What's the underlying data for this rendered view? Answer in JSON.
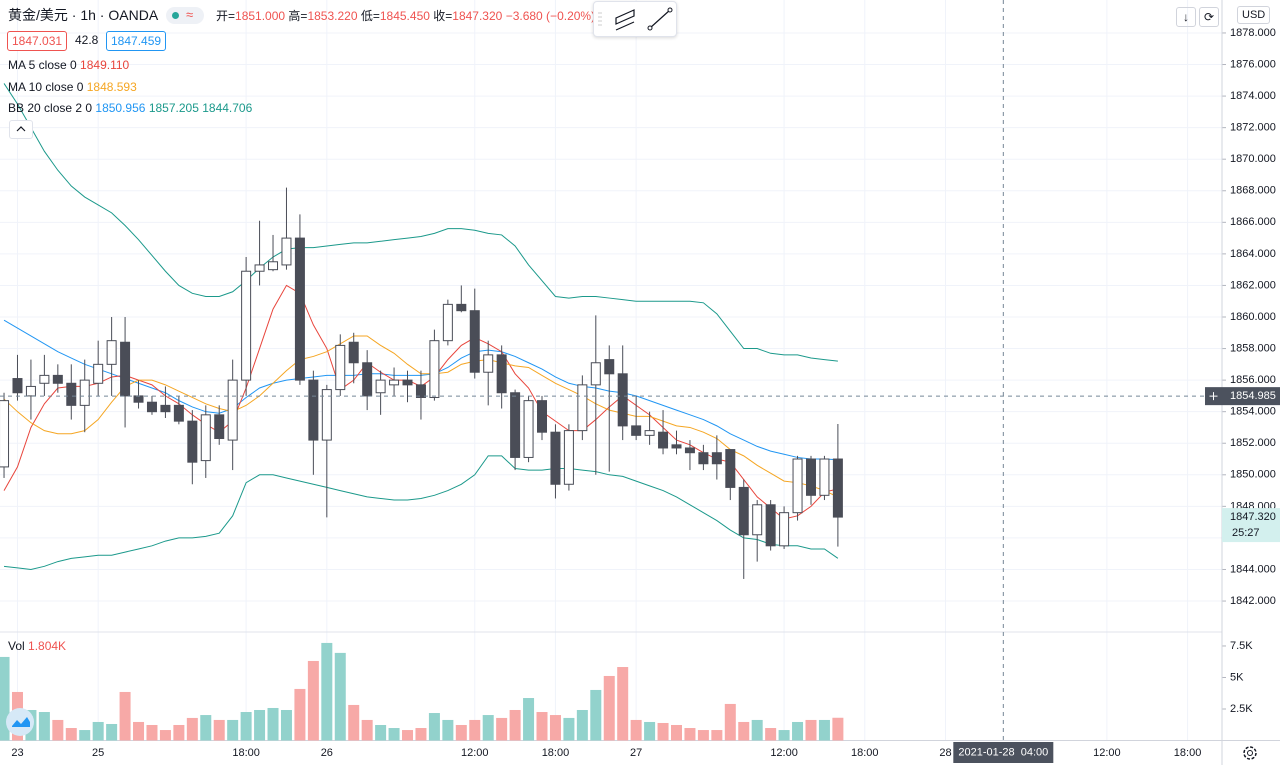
{
  "header": {
    "symbol": "黄金/美元",
    "interval": "1h",
    "exchange": "OANDA",
    "ohlc": [
      {
        "label": "开=",
        "value": "1851.000"
      },
      {
        "label": "高=",
        "value": "1853.220"
      },
      {
        "label": "低=",
        "value": "1845.450"
      },
      {
        "label": "收=",
        "value": "1847.320"
      }
    ],
    "change": "−3.680 (−0.20%)",
    "bid": "1847.031",
    "spread": "42.8",
    "ask": "1847.459",
    "currency": "USD"
  },
  "chart_data": {
    "type": "candlestick",
    "x": [
      0,
      1,
      2,
      3,
      4,
      5,
      6,
      7,
      8,
      9,
      10,
      11,
      12,
      13,
      14,
      15,
      16,
      17,
      18,
      19,
      20,
      21,
      22,
      23,
      24,
      25,
      26,
      27,
      28,
      29,
      30,
      31,
      32,
      33,
      34,
      35,
      36,
      37,
      38,
      39,
      40,
      41,
      42,
      43,
      44,
      45,
      46,
      47,
      48,
      49,
      50,
      51,
      52,
      53,
      54,
      55,
      56,
      57,
      58,
      59,
      60,
      61,
      62
    ],
    "xlim": [
      -0.3,
      90.56
    ],
    "xticks": [
      {
        "value": 1,
        "label": "23"
      },
      {
        "value": 7,
        "label": "25"
      },
      {
        "value": 18,
        "label": "18:00"
      },
      {
        "value": 24,
        "label": "26"
      },
      {
        "value": 35,
        "label": "12:00"
      },
      {
        "value": 41,
        "label": "18:00"
      },
      {
        "value": 47,
        "label": "27"
      },
      {
        "value": 58,
        "label": "12:00"
      },
      {
        "value": 64,
        "label": "18:00"
      },
      {
        "value": 70,
        "label": "28"
      },
      {
        "value": 82,
        "label": "12:00"
      },
      {
        "value": 88,
        "label": "18:00"
      }
    ],
    "ylim": [
      1840,
      1880
    ],
    "yticks": [
      {
        "value": 1842,
        "label": "1842.000"
      },
      {
        "value": 1844,
        "label": "1844.000"
      },
      {
        "value": 1846,
        "label": "1846.000"
      },
      {
        "value": 1848,
        "label": "1848.000"
      },
      {
        "value": 1850,
        "label": "1850.000"
      },
      {
        "value": 1852,
        "label": "1852.000"
      },
      {
        "value": 1854,
        "label": "1854.000"
      },
      {
        "value": 1856,
        "label": "1856.000"
      },
      {
        "value": 1858,
        "label": "1858.000"
      },
      {
        "value": 1860,
        "label": "1860.000"
      },
      {
        "value": 1862,
        "label": "1862.000"
      },
      {
        "value": 1864,
        "label": "1864.000"
      },
      {
        "value": 1866,
        "label": "1866.000"
      },
      {
        "value": 1868,
        "label": "1868.000"
      },
      {
        "value": 1870,
        "label": "1870.000"
      },
      {
        "value": 1872,
        "label": "1872.000"
      },
      {
        "value": 1874,
        "label": "1874.000"
      },
      {
        "value": 1876,
        "label": "1876.000"
      },
      {
        "value": 1878,
        "label": "1878.000"
      }
    ],
    "grid": true,
    "up_color": "#ffffff",
    "down_color": "#4a4d57",
    "wick_color": "#4a4d57",
    "open": [
      1850.5,
      1856.1,
      1855.0,
      1855.8,
      1856.3,
      1855.8,
      1854.4,
      1855.8,
      1857.0,
      1858.4,
      1855.0,
      1854.6,
      1854.4,
      1854.4,
      1853.4,
      1850.9,
      1853.8,
      1852.2,
      1856.0,
      1862.9,
      1863.0,
      1863.3,
      1865.0,
      1856.0,
      1852.2,
      1855.4,
      1858.4,
      1857.1,
      1855.2,
      1855.7,
      1856.0,
      1855.7,
      1854.9,
      1858.5,
      1860.8,
      1860.4,
      1856.5,
      1857.6,
      1855.2,
      1851.1,
      1854.7,
      1852.7,
      1849.4,
      1852.8,
      1855.7,
      1857.3,
      1856.4,
      1853.1,
      1852.5,
      1852.7,
      1851.9,
      1851.7,
      1851.4,
      1851.4,
      1851.6,
      1849.2,
      1846.2,
      1848.1,
      1845.5,
      1847.6,
      1851.0,
      1848.7,
      1851.0
    ],
    "high": [
      1855.2,
      1857.6,
      1857.3,
      1857.6,
      1857.0,
      1857.0,
      1857.3,
      1858.5,
      1860.0,
      1860.0,
      1856.0,
      1855.0,
      1855.6,
      1855.0,
      1854.1,
      1854.4,
      1854.4,
      1857.3,
      1863.8,
      1866.1,
      1865.2,
      1868.2,
      1866.5,
      1856.6,
      1855.7,
      1858.9,
      1859.0,
      1857.9,
      1856.6,
      1856.8,
      1856.6,
      1856.6,
      1859.2,
      1861.1,
      1862.0,
      1861.8,
      1858.5,
      1858.2,
      1855.4,
      1855.0,
      1855.0,
      1853.2,
      1853.2,
      1856.3,
      1860.1,
      1858.2,
      1858.2,
      1855.0,
      1854.0,
      1854.1,
      1852.8,
      1852.2,
      1851.9,
      1852.5,
      1851.6,
      1849.7,
      1848.4,
      1848.4,
      1848.0,
      1851.2,
      1851.2,
      1851.2,
      1853.22
    ],
    "low": [
      1849.8,
      1854.7,
      1853.5,
      1855.0,
      1855.2,
      1853.5,
      1852.7,
      1855.0,
      1855.0,
      1853.0,
      1854.2,
      1853.8,
      1853.6,
      1853.2,
      1849.4,
      1849.8,
      1851.9,
      1850.3,
      1855.0,
      1862.0,
      1862.9,
      1863.0,
      1855.7,
      1850.0,
      1847.3,
      1855.0,
      1855.8,
      1854.1,
      1853.8,
      1855.0,
      1854.6,
      1853.5,
      1854.7,
      1858.2,
      1860.3,
      1856.1,
      1854.4,
      1854.2,
      1850.3,
      1850.8,
      1852.2,
      1848.5,
      1849.0,
      1852.2,
      1850.0,
      1850.2,
      1852.2,
      1852.2,
      1851.9,
      1851.3,
      1851.3,
      1850.3,
      1850.3,
      1849.7,
      1848.4,
      1843.4,
      1844.5,
      1845.2,
      1845.3,
      1847.1,
      1848.1,
      1848.4,
      1845.45
    ],
    "close": [
      1854.7,
      1855.2,
      1855.6,
      1856.3,
      1855.8,
      1854.4,
      1856.0,
      1857.0,
      1858.5,
      1855.0,
      1854.6,
      1854.0,
      1854.0,
      1853.4,
      1850.8,
      1853.8,
      1852.3,
      1856.0,
      1862.9,
      1863.3,
      1863.5,
      1865.0,
      1856.0,
      1852.2,
      1855.4,
      1858.2,
      1857.1,
      1855.0,
      1856.0,
      1856.0,
      1855.7,
      1854.9,
      1858.5,
      1860.8,
      1860.4,
      1856.5,
      1857.6,
      1855.2,
      1851.1,
      1854.7,
      1852.7,
      1849.4,
      1852.8,
      1855.7,
      1857.1,
      1856.4,
      1853.1,
      1852.5,
      1852.8,
      1851.7,
      1851.7,
      1851.4,
      1850.7,
      1850.7,
      1849.2,
      1846.2,
      1848.1,
      1845.5,
      1847.6,
      1851.0,
      1848.7,
      1851.0,
      1847.32
    ],
    "last_price_label": "1847.320",
    "countdown": "25:27",
    "last_price_color": "#d3f0ee",
    "lines": [
      {
        "name": "MA 5 close 0",
        "label": "1849.110",
        "color": "#e8453c",
        "values": [
          1849.0,
          1850.5,
          1853.0,
          1854.5,
          1855.5,
          1855.6,
          1855.6,
          1855.8,
          1856.2,
          1856.3,
          1856.0,
          1855.7,
          1855.0,
          1854.5,
          1853.8,
          1853.2,
          1852.7,
          1853.4,
          1855.5,
          1858.0,
          1860.5,
          1862.0,
          1861.5,
          1859.5,
          1858.0,
          1855.4,
          1856.0,
          1857.1,
          1856.5,
          1856.0,
          1856.0,
          1855.6,
          1856.2,
          1857.3,
          1858.2,
          1858.7,
          1858.3,
          1857.8,
          1856.4,
          1855.5,
          1854.0,
          1853.4,
          1852.8,
          1852.8,
          1853.5,
          1854.3,
          1855.0,
          1854.4,
          1853.8,
          1853.0,
          1852.2,
          1851.9,
          1851.4,
          1851.0,
          1850.8,
          1849.7,
          1848.6,
          1847.9,
          1847.2,
          1847.4,
          1848.0,
          1848.9,
          1849.11
        ]
      },
      {
        "name": "MA 10 close 0",
        "label": "1848.593",
        "color": "#f5a623",
        "values": [
          1854.8,
          1854.0,
          1853.3,
          1852.8,
          1852.6,
          1852.6,
          1852.8,
          1853.5,
          1854.6,
          1855.6,
          1856.0,
          1856.0,
          1855.7,
          1855.3,
          1854.9,
          1854.5,
          1854.2,
          1854.0,
          1854.4,
          1855.0,
          1855.8,
          1856.6,
          1857.3,
          1857.5,
          1857.8,
          1858.3,
          1858.8,
          1858.8,
          1858.2,
          1857.7,
          1857.0,
          1856.4,
          1856.4,
          1856.5,
          1857.0,
          1857.2,
          1857.3,
          1857.1,
          1856.9,
          1856.8,
          1856.3,
          1855.8,
          1855.4,
          1855.0,
          1854.5,
          1854.1,
          1853.9,
          1853.7,
          1853.7,
          1853.4,
          1853.1,
          1853.0,
          1852.7,
          1852.3,
          1851.6,
          1851.2,
          1850.6,
          1850.1,
          1849.6,
          1849.5,
          1849.3,
          1849.0,
          1848.593
        ]
      }
    ],
    "bollinger": {
      "name": "BB 20 close 2 0",
      "bands": [
        {
          "label": "1850.956",
          "color": "#2196f3",
          "values": [
            1859.8,
            1859.3,
            1858.8,
            1858.3,
            1857.8,
            1857.4,
            1857.0,
            1856.7,
            1856.4,
            1856.1,
            1855.8,
            1855.5,
            1855.2,
            1854.7,
            1854.3,
            1854.0,
            1853.9,
            1854.2,
            1854.9,
            1855.5,
            1855.8,
            1856.0,
            1856.1,
            1856.2,
            1856.3,
            1856.3,
            1856.3,
            1856.4,
            1856.4,
            1856.3,
            1856.3,
            1856.3,
            1856.4,
            1856.8,
            1857.4,
            1857.8,
            1857.9,
            1857.8,
            1857.5,
            1857.1,
            1856.7,
            1856.2,
            1855.8,
            1855.6,
            1855.5,
            1855.3,
            1855.2,
            1855.0,
            1854.7,
            1854.4,
            1854.1,
            1853.8,
            1853.5,
            1853.1,
            1852.6,
            1852.2,
            1851.8,
            1851.5,
            1851.3,
            1851.1,
            1851.0,
            1851.0,
            1850.956
          ]
        },
        {
          "label": "1857.205",
          "color": "#1b998b",
          "values": [
            1874.8,
            1873.5,
            1872.0,
            1870.5,
            1869.3,
            1868.3,
            1867.6,
            1867.1,
            1866.6,
            1865.8,
            1864.9,
            1863.9,
            1862.9,
            1862.0,
            1861.5,
            1861.3,
            1861.3,
            1861.6,
            1862.3,
            1863.1,
            1863.8,
            1864.3,
            1864.4,
            1864.4,
            1864.5,
            1864.6,
            1864.7,
            1864.7,
            1864.8,
            1864.9,
            1865.0,
            1865.1,
            1865.3,
            1865.6,
            1865.6,
            1865.5,
            1865.3,
            1865.2,
            1864.5,
            1863.3,
            1862.3,
            1861.3,
            1861.2,
            1861.3,
            1861.3,
            1861.2,
            1861.1,
            1861.0,
            1861.0,
            1861.0,
            1861.0,
            1861.0,
            1860.9,
            1860.2,
            1859.1,
            1858.0,
            1858.0,
            1857.7,
            1857.6,
            1857.6,
            1857.4,
            1857.3,
            1857.205
          ]
        },
        {
          "label": "1844.706",
          "color": "#1b998b",
          "values": [
            1844.2,
            1844.1,
            1844.0,
            1844.2,
            1844.5,
            1844.7,
            1844.8,
            1844.9,
            1844.9,
            1845.1,
            1845.3,
            1845.5,
            1845.8,
            1846.0,
            1846.0,
            1846.1,
            1846.3,
            1847.4,
            1849.5,
            1850.0,
            1850.0,
            1849.8,
            1849.6,
            1849.4,
            1849.2,
            1849.0,
            1848.8,
            1848.6,
            1848.5,
            1848.4,
            1848.4,
            1848.5,
            1848.7,
            1849.0,
            1849.4,
            1850.0,
            1851.2,
            1851.2,
            1850.4,
            1850.3,
            1850.3,
            1850.4,
            1850.4,
            1850.3,
            1850.2,
            1850.0,
            1849.9,
            1849.6,
            1849.3,
            1849.0,
            1848.6,
            1848.1,
            1847.6,
            1847.1,
            1846.5,
            1846.0,
            1845.9,
            1845.6,
            1845.5,
            1845.5,
            1845.3,
            1845.3,
            1844.706
          ]
        }
      ]
    },
    "volume": {
      "name": "Vol",
      "label": "1.804K",
      "up_color": "#92d2cc",
      "down_color": "#f7a9a7",
      "ylim": [
        0,
        8600
      ],
      "yticks": [
        {
          "value": 2500,
          "label": "2.5K"
        },
        {
          "value": 5000,
          "label": "5K"
        },
        {
          "value": 7500,
          "label": "7.5K"
        }
      ],
      "values": [
        6630,
        3850,
        2420,
        2260,
        1630,
        990,
        830,
        1470,
        1310,
        3850,
        1470,
        1230,
        830,
        1230,
        1790,
        2020,
        1630,
        1630,
        2260,
        2420,
        2580,
        2420,
        4090,
        6310,
        7740,
        6950,
        2820,
        1630,
        1230,
        990,
        830,
        990,
        2180,
        1630,
        1230,
        1630,
        2020,
        1790,
        2420,
        3370,
        2260,
        2020,
        1790,
        2420,
        4010,
        5120,
        5830,
        1630,
        1470,
        1390,
        1230,
        990,
        830,
        830,
        2900,
        1470,
        1630,
        990,
        830,
        1470,
        1630,
        1630,
        1804
      ]
    },
    "crosshair": {
      "x": 74.3,
      "price": 1854.985,
      "price_label": "1854.985",
      "time_label": "2021-01-28  04:00"
    }
  }
}
